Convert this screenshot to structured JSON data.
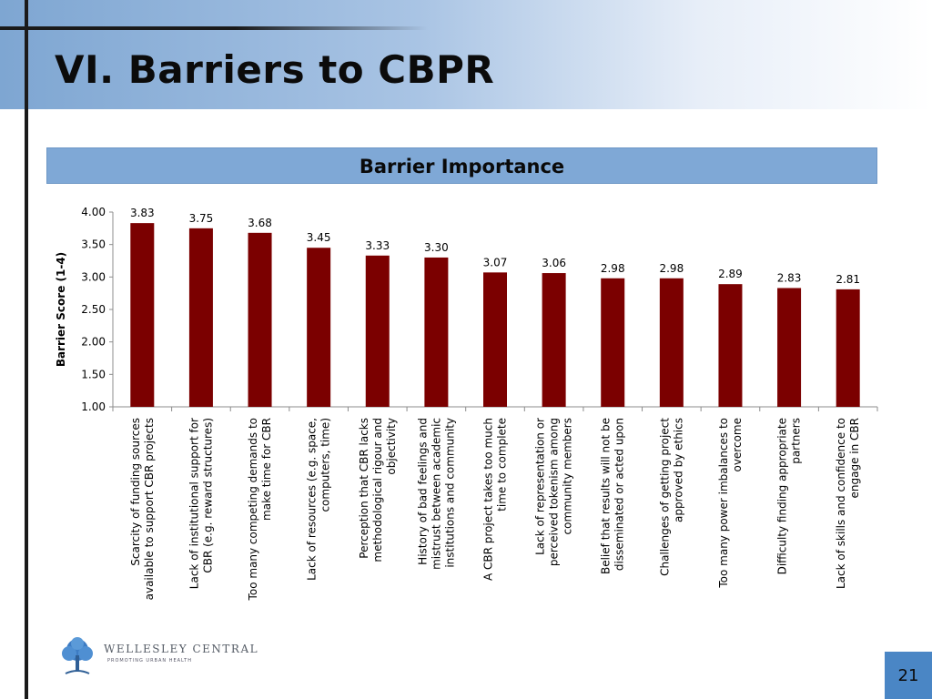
{
  "slide": {
    "title": "VI. Barriers to CBPR",
    "page_number": "21"
  },
  "logo": {
    "name": "WELLESLEY CENTRAL",
    "tagline": "PROMOTING URBAN HEALTH"
  },
  "colors": {
    "bar": "#7b0000",
    "title_bar": "#7fa8d6",
    "page_box": "#4a86c5"
  },
  "chart_data": {
    "type": "bar",
    "title": "Barrier Importance",
    "ylabel": "Barrier Score (1-4)",
    "xlabel": "",
    "ylim": [
      1.0,
      4.0
    ],
    "yticks": [
      "1.00",
      "1.50",
      "2.00",
      "2.50",
      "3.00",
      "3.50",
      "4.00"
    ],
    "grid": false,
    "categories": [
      "Scarcity of funding sources available to support CBR projects",
      "Lack of institutional support for CBR (e.g. reward structures)",
      "Too many competing demands to make time for CBR",
      "Lack of resources (e.g. space, computers, time)",
      "Perception that CBR lacks methodological rigour and objectivity",
      "History of bad feelings and mistrust between academic institutions and community",
      "A CBR project takes too much time to complete",
      "Lack of representation or perceived tokenism among community members",
      "Belief that results will not be disseminated or acted upon",
      "Challenges of getting project approved by ethics",
      "Too many power imbalances to overcome",
      "Difficulty finding appropriate partners",
      "Lack of skills and confidence to engage in CBR"
    ],
    "category_lines": [
      [
        "Scarcity of funding sources",
        "available to support CBR projects"
      ],
      [
        "Lack of institutional support for",
        "CBR (e.g. reward structures)"
      ],
      [
        "Too many competing demands to",
        "make time for CBR"
      ],
      [
        "Lack of resources (e.g. space,",
        "computers, time)"
      ],
      [
        "Perception that CBR lacks",
        "methodological rigour and",
        "objectivity"
      ],
      [
        "History of bad feelings and",
        "mistrust between academic",
        "institutions and community"
      ],
      [
        "A CBR project takes too much",
        "time to complete"
      ],
      [
        "Lack of representation or",
        "perceived tokenism among",
        "community members"
      ],
      [
        "Belief that results will not be",
        "disseminated or acted upon"
      ],
      [
        "Challenges of getting project",
        "approved by ethics"
      ],
      [
        "Too many power imbalances to",
        "overcome"
      ],
      [
        "Difficulty finding appropriate",
        "partners"
      ],
      [
        "Lack of skills and confidence to",
        "engage in CBR"
      ]
    ],
    "values": [
      3.83,
      3.75,
      3.68,
      3.45,
      3.33,
      3.3,
      3.07,
      3.06,
      2.98,
      2.98,
      2.89,
      2.83,
      2.81
    ],
    "value_labels": [
      "3.83",
      "3.75",
      "3.68",
      "3.45",
      "3.33",
      "3.30",
      "3.07",
      "3.06",
      "2.98",
      "2.98",
      "2.89",
      "2.83",
      "2.81"
    ]
  }
}
